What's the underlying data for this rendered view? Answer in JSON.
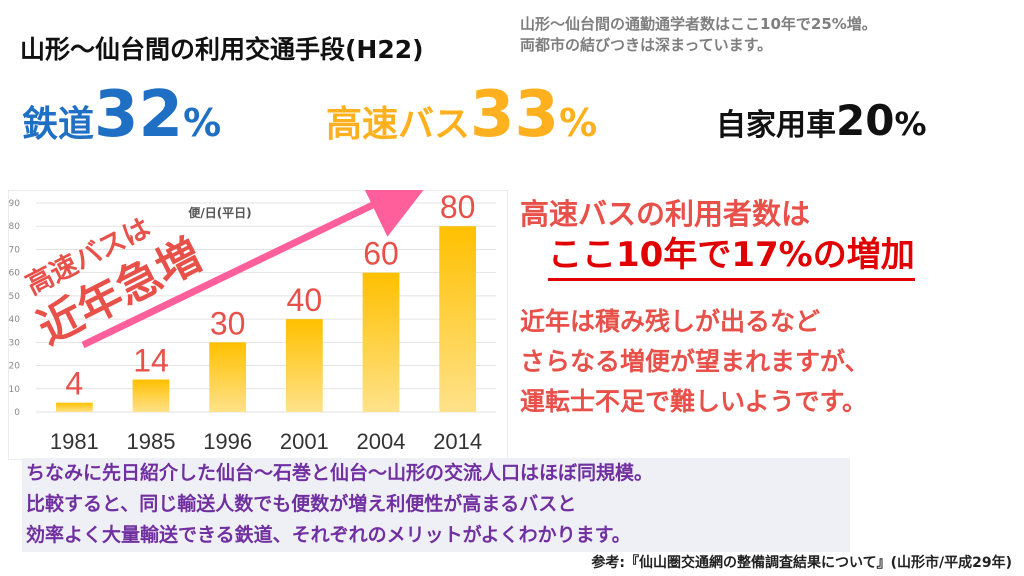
{
  "header": {
    "title": "山形～仙台間の利用交通手段(H22)",
    "note_line1": "山形～仙台間の通勤通学者数はここ10年で25%増。",
    "note_line2": "両都市の結びつきは深まっています。"
  },
  "shares": {
    "rail": {
      "label": "鉄道",
      "number": "32",
      "unit": "%"
    },
    "bus": {
      "label": "高速バス",
      "number": "33",
      "unit": "%"
    },
    "car": {
      "label": "自家用車",
      "number": "20",
      "unit": "%"
    }
  },
  "chart_data": {
    "type": "bar",
    "unit_label": "便/日(平日)",
    "categories": [
      "1981",
      "1985",
      "1996",
      "2001",
      "2004",
      "2014"
    ],
    "values": [
      4,
      14,
      30,
      40,
      60,
      80
    ],
    "data_labels": [
      "4",
      "14",
      "30",
      "40",
      "60",
      "80"
    ],
    "ylim": [
      0,
      90
    ],
    "yticks": [
      "0",
      "10",
      "20",
      "30",
      "40",
      "50",
      "60",
      "70",
      "80",
      "90"
    ],
    "grid": true,
    "annotation_small": "高速バスは",
    "annotation_big": "近年急増",
    "colors": {
      "bar_top": "#ffc000",
      "bar_bottom": "#ffe28a",
      "label": "#e8504a",
      "arrow": "#ff5f9a"
    }
  },
  "right_panel": {
    "line1": "高速バスの利用者数は",
    "line2": "ここ10年で17%の増加",
    "line3": "近年は積み残しが出るなど",
    "line4": "さらなる増便が望まれますが、",
    "line5": "運転士不足で難しいようです。"
  },
  "bottom": {
    "line1": "ちなみに先日紹介した仙台～石巻と仙台～山形の交流人口はほぼ同規模。",
    "line2": "比較すると、同じ輸送人数でも便数が増え利便性が高まるバスと",
    "line3": "効率よく大量輸送できる鉄道、それぞれのメリットがよくわかります。"
  },
  "source": "参考:『仙山圏交通網の整備調査結果について』(山形市/平成29年)"
}
